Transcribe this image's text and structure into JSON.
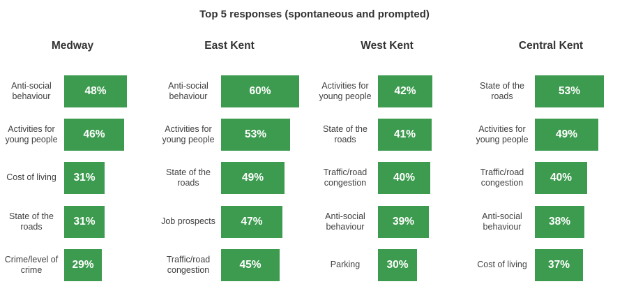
{
  "chart_data": {
    "type": "bar",
    "title": "Top 5 responses (spontaneous and prompted)",
    "xlim": [
      0,
      60
    ],
    "unit": "%",
    "colors": {
      "bar": "#3d9b4f",
      "bar_text": "#ffffff",
      "text": "#333333"
    },
    "panels": [
      {
        "name": "Medway",
        "categories": [
          "Anti-social behaviour",
          "Activities for young people",
          "Cost of living",
          "State of the roads",
          "Crime/level of crime"
        ],
        "values": [
          48,
          46,
          31,
          31,
          29
        ],
        "labels": [
          "48%",
          "46%",
          "31%",
          "31%",
          "29%"
        ]
      },
      {
        "name": "East Kent",
        "categories": [
          "Anti-social behaviour",
          "Activities for young people",
          "State of the roads",
          "Job prospects",
          "Traffic/road congestion"
        ],
        "values": [
          60,
          53,
          49,
          47,
          45
        ],
        "labels": [
          "60%",
          "53%",
          "49%",
          "47%",
          "45%"
        ]
      },
      {
        "name": "West Kent",
        "categories": [
          "Activities for young people",
          "State of the roads",
          "Traffic/road congestion",
          "Anti-social behaviour",
          "Parking"
        ],
        "values": [
          42,
          41,
          40,
          39,
          30
        ],
        "labels": [
          "42%",
          "41%",
          "40%",
          "39%",
          "30%"
        ]
      },
      {
        "name": "Central Kent",
        "categories": [
          "State of the roads",
          "Activities for young people",
          "Traffic/road congestion",
          "Anti-social behaviour",
          "Cost of living"
        ],
        "values": [
          53,
          49,
          40,
          38,
          37
        ],
        "labels": [
          "53%",
          "49%",
          "40%",
          "38%",
          "37%"
        ]
      }
    ]
  }
}
